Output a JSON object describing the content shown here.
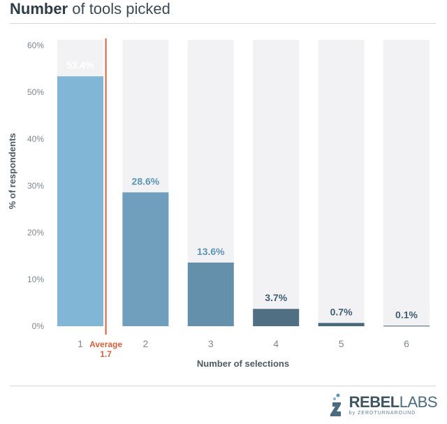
{
  "title": {
    "bold": "Number",
    "rest": " of tools picked"
  },
  "chart_data": {
    "type": "bar",
    "title": "Number of tools picked",
    "categories": [
      "1",
      "2",
      "3",
      "4",
      "5",
      "6"
    ],
    "values": [
      53.4,
      28.6,
      13.6,
      3.7,
      0.7,
      0.1
    ],
    "value_labels": [
      "53.4%",
      "28.6%",
      "13.6%",
      "3.7%",
      "0.7%",
      "0.1%"
    ],
    "xlabel": "Number of selections",
    "ylabel": "% of respondents",
    "ylim": [
      0,
      60
    ],
    "yticks": [
      "0%",
      "10%",
      "20%",
      "30%",
      "40%",
      "50%",
      "60%"
    ],
    "grid": false,
    "background_columns": true,
    "annotation": {
      "label_line1": "Average",
      "label_line2": "1.7",
      "x_value": 1.7,
      "color": "#d95f3b"
    },
    "bar_colors": [
      "#82b6d6",
      "#6f9fbd",
      "#6490ab",
      "#506f82",
      "#496a7c",
      "#3f6073"
    ],
    "value_label_colors": [
      "#ffffff",
      "#5b95b8",
      "#5b95b8",
      "#3f5e70",
      "#3f5e70",
      "#3f5e70"
    ],
    "background_column_color": "#f2f2f4"
  },
  "logo": {
    "main": "REBEL",
    "main2": "LABS",
    "sub": "by ZEROTURNAROUND"
  }
}
